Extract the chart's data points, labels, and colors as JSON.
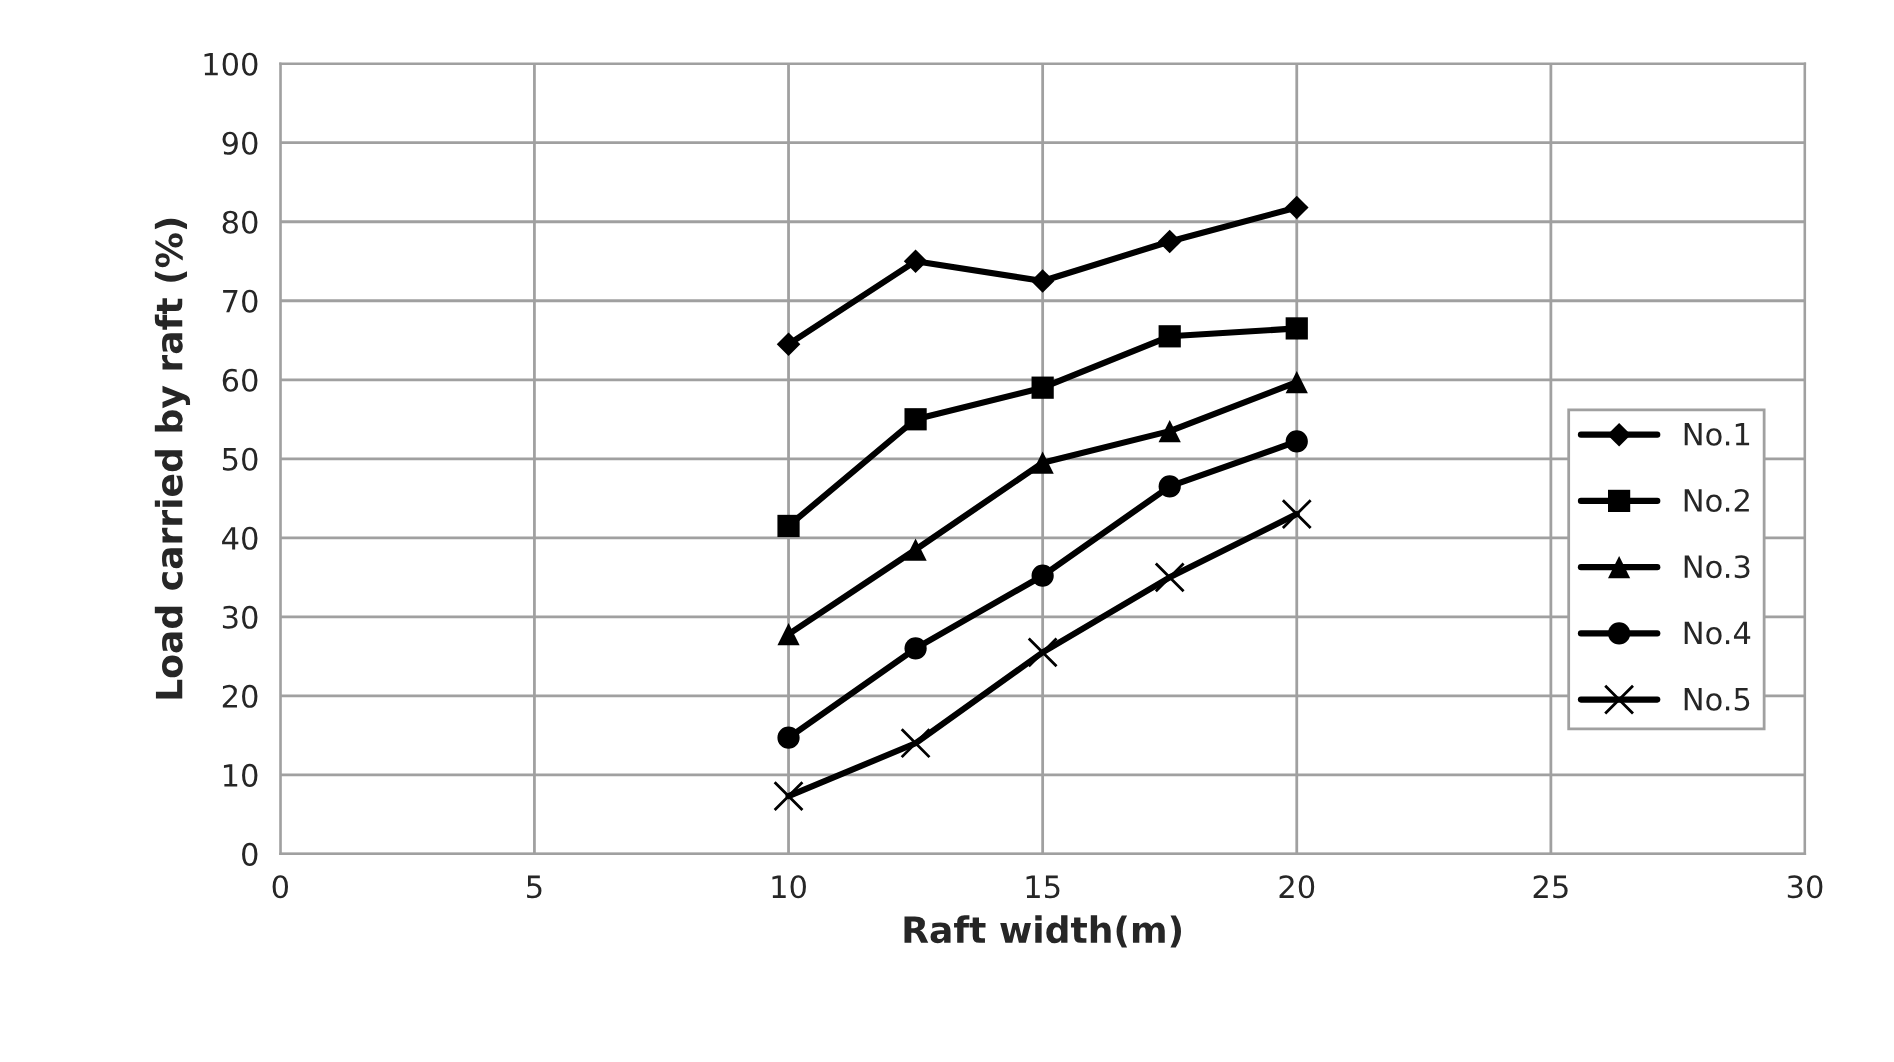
{
  "chart_data": {
    "type": "line",
    "xlabel": "Raft width(m)",
    "ylabel": "Load carried by raft (%)",
    "x": [
      10,
      12.5,
      15,
      17.5,
      20
    ],
    "series": [
      {
        "name": "No.1",
        "color": "#000000",
        "marker": "diamond",
        "values": [
          64.5,
          75,
          72.5,
          77.5,
          81.8
        ]
      },
      {
        "name": "No.2",
        "color": "#000000",
        "marker": "square",
        "values": [
          41.5,
          55,
          59,
          65.5,
          66.5
        ]
      },
      {
        "name": "No.3",
        "color": "#000000",
        "marker": "triangle",
        "values": [
          27.8,
          38.5,
          49.5,
          53.5,
          59.7
        ]
      },
      {
        "name": "No.4",
        "color": "#000000",
        "marker": "circle",
        "values": [
          14.7,
          26,
          35.2,
          46.5,
          52.2
        ]
      },
      {
        "name": "No.5",
        "color": "#000000",
        "marker": "cross",
        "values": [
          7.3,
          14,
          25.5,
          35,
          43
        ]
      }
    ],
    "xlim": [
      0,
      30
    ],
    "xticks": [
      0,
      5,
      10,
      15,
      20,
      25,
      30
    ],
    "ylim": [
      0,
      100
    ],
    "yticks": [
      0,
      10,
      20,
      30,
      40,
      50,
      60,
      70,
      80,
      90,
      100
    ],
    "grid": true,
    "legend": "right",
    "line_style": "solid"
  }
}
